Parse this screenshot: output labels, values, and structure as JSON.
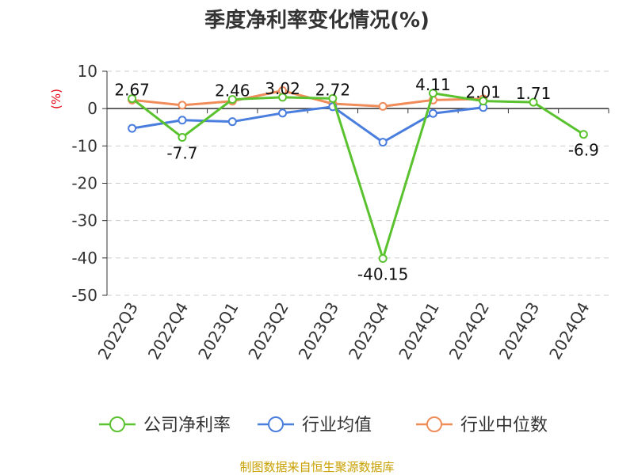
{
  "chart_data": {
    "type": "line",
    "title": "季度净利率变化情况(%)",
    "ylabel": "(%)",
    "xlabel": "",
    "categories": [
      "2022Q3",
      "2022Q4",
      "2023Q1",
      "2023Q2",
      "2023Q3",
      "2023Q4",
      "2024Q1",
      "2024Q2",
      "2024Q3",
      "2024Q4"
    ],
    "ylim": [
      -50,
      10
    ],
    "yticks": [
      10,
      0,
      -10,
      -20,
      -30,
      -40,
      -50
    ],
    "grid": true,
    "legend_position": "bottom",
    "series": [
      {
        "name": "公司净利率",
        "color": "#5ac22e",
        "values": [
          2.67,
          -7.7,
          2.46,
          3.02,
          2.72,
          -40.15,
          4.11,
          2.01,
          1.71,
          -6.9
        ],
        "labels": [
          "2.67",
          "-7.7",
          "2.46",
          "3.02",
          "2.72",
          "-40.15",
          "4.11",
          "2.01",
          "1.71",
          "-6.9"
        ]
      },
      {
        "name": "行业均值",
        "color": "#4a7ede",
        "values": [
          -5.3,
          -3.1,
          -3.5,
          -1.2,
          0.5,
          -9.0,
          -1.3,
          0.3,
          null,
          null
        ]
      },
      {
        "name": "行业中位数",
        "color": "#f08c5a",
        "values": [
          2.3,
          0.9,
          2.0,
          4.8,
          1.3,
          0.6,
          2.3,
          2.6,
          null,
          null
        ]
      }
    ]
  },
  "source": "制图数据来自恒生聚源数据库"
}
